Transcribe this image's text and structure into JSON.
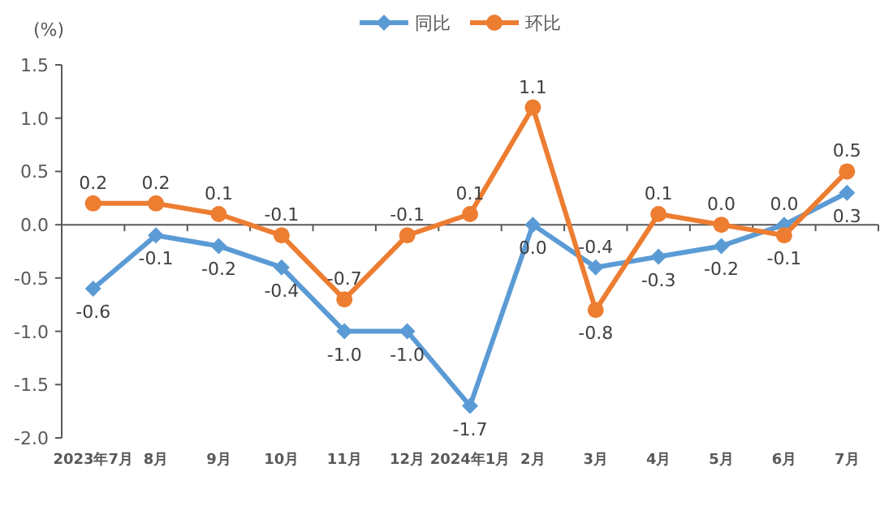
{
  "chart_data": {
    "type": "line",
    "ylabel": "(%)",
    "categories": [
      "2023年7月",
      "8月",
      "9月",
      "10月",
      "11月",
      "12月",
      "2024年1月",
      "2月",
      "3月",
      "4月",
      "5月",
      "6月",
      "7月"
    ],
    "series": [
      {
        "name": "同比",
        "color": "#5b9bd5",
        "marker": "diamond",
        "values": [
          -0.6,
          -0.1,
          -0.2,
          -0.4,
          -1.0,
          -1.0,
          -1.7,
          0.0,
          -0.4,
          -0.3,
          -0.2,
          0.0,
          0.3
        ],
        "value_labels": [
          "-0.6",
          "-0.1",
          "-0.2",
          "-0.4",
          "-1.0",
          "-1.0",
          "-1.7",
          "0.0",
          "-0.4",
          "-0.3",
          "-0.2",
          "0.0",
          "0.3"
        ]
      },
      {
        "name": "环比",
        "color": "#ed7d31",
        "marker": "circle",
        "values": [
          0.2,
          0.2,
          0.1,
          -0.1,
          -0.7,
          -0.1,
          0.1,
          1.1,
          -0.8,
          0.1,
          0.0,
          -0.1,
          0.5
        ],
        "value_labels": [
          "0.2",
          "0.2",
          "0.1",
          "-0.1",
          "-0.7",
          "-0.1",
          "0.1",
          "1.1",
          "-0.8",
          "0.1",
          "0.0",
          "-0.1",
          "0.5"
        ]
      }
    ],
    "ylim": [
      -2.0,
      1.5
    ],
    "yticks": [
      {
        "value": -2.0,
        "label": "-2.0"
      },
      {
        "value": -1.5,
        "label": "-1.5"
      },
      {
        "value": -1.0,
        "label": "-1.0"
      },
      {
        "value": -0.5,
        "label": "-0.5"
      },
      {
        "value": 0,
        "label": "0.0"
      },
      {
        "value": 0.5,
        "label": "0.5"
      },
      {
        "value": 1.0,
        "label": "1.0"
      },
      {
        "value": 1.5,
        "label": "1.5"
      }
    ],
    "legend": "top"
  }
}
